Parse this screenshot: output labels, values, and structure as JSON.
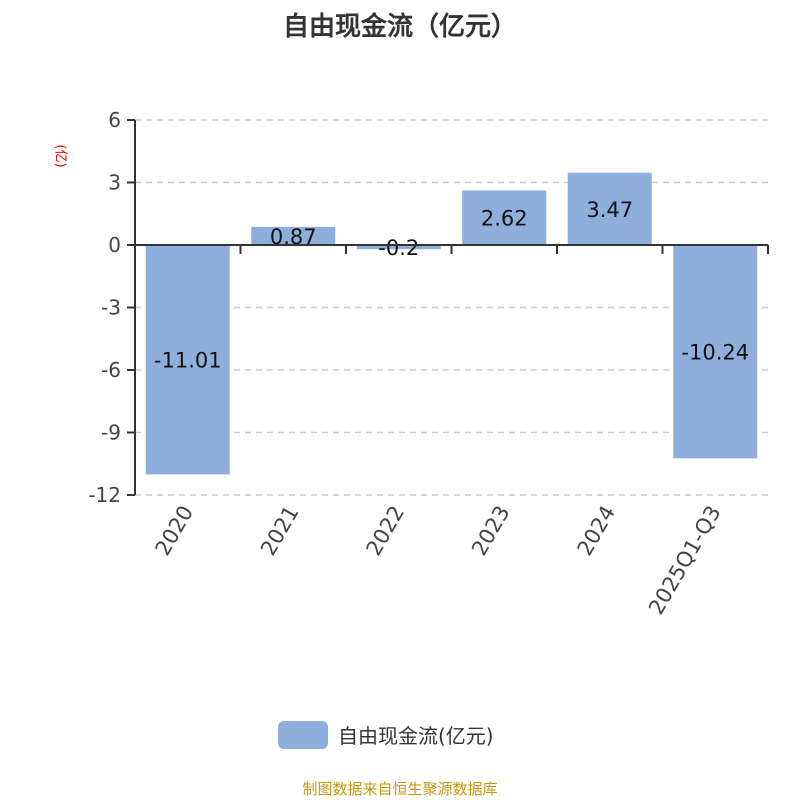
{
  "chart_data": {
    "type": "bar",
    "title": "自由现金流（亿元）",
    "ylabel": "(亿)",
    "categories": [
      "2020",
      "2021",
      "2022",
      "2023",
      "2024",
      "2025Q1-Q3"
    ],
    "series": [
      {
        "name": "自由现金流(亿元)",
        "values": [
          -11.01,
          0.87,
          -0.2,
          2.62,
          3.47,
          -10.24
        ]
      }
    ],
    "data_labels": [
      "-11.01",
      "0.87",
      "-0.2",
      "2.62",
      "3.47",
      "-10.24"
    ],
    "ylim": [
      -12,
      6
    ],
    "yticks": [
      6,
      3,
      0,
      -3,
      -6,
      -9,
      -12
    ],
    "grid": true,
    "legend": "bottom",
    "color": "#8eaedb"
  },
  "footer": "制图数据来自恒生聚源数据库"
}
